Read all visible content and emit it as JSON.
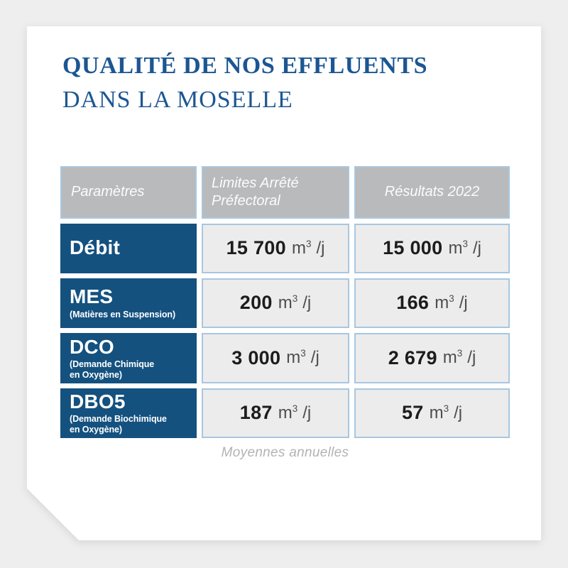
{
  "header": {
    "title_line1": "QUALITÉ DE NOS EFFLUENTS",
    "title_line2": "DANS LA MOSELLE"
  },
  "table": {
    "headers": [
      "Paramètres",
      "Limites Arrêté Préfectoral",
      "Résultats 2022"
    ],
    "unit": {
      "base": "m",
      "exponent": "3",
      "suffix": "/j"
    },
    "rows": [
      {
        "param": "Débit",
        "sub": "",
        "limit": "15 700",
        "result": "15 000"
      },
      {
        "param": "MES",
        "sub": "(Matières en Suspension)",
        "limit": "200",
        "result": "166"
      },
      {
        "param": "DCO",
        "sub": "(Demande Chimique\nen Oxygène)",
        "limit": "3 000",
        "result": "2 679"
      },
      {
        "param": "DBO5",
        "sub": "(Demande Biochimique\nen Oxygène)",
        "limit": "187",
        "result": "57"
      }
    ]
  },
  "footer": {
    "note": "Moyennes annuelles"
  },
  "colors": {
    "title_blue": "#1c5692",
    "row_blue": "#14517f",
    "header_gray": "#b9babc",
    "cell_border_blue": "#a9c6e0",
    "cell_fill": "#ececed",
    "page_background": "#eeeeee",
    "number_black": "#1c1c1c",
    "unit_gray": "#4d4d4f",
    "note_gray": "#b1b3b5"
  },
  "chart_data": {
    "type": "table",
    "title": "Qualité de nos effluents dans la Moselle",
    "columns": [
      "Paramètres",
      "Limites Arrêté Préfectoral",
      "Résultats 2022"
    ],
    "unit": "m³/j",
    "rows": [
      {
        "parametre": "Débit",
        "limite_arrete_prefectoral": 15700,
        "resultat_2022": 15000
      },
      {
        "parametre": "MES (Matières en Suspension)",
        "limite_arrete_prefectoral": 200,
        "resultat_2022": 166
      },
      {
        "parametre": "DCO (Demande Chimique en Oxygène)",
        "limite_arrete_prefectoral": 3000,
        "resultat_2022": 2679
      },
      {
        "parametre": "DBO5 (Demande Biochimique en Oxygène)",
        "limite_arrete_prefectoral": 187,
        "resultat_2022": 57
      }
    ],
    "note": "Moyennes annuelles"
  }
}
